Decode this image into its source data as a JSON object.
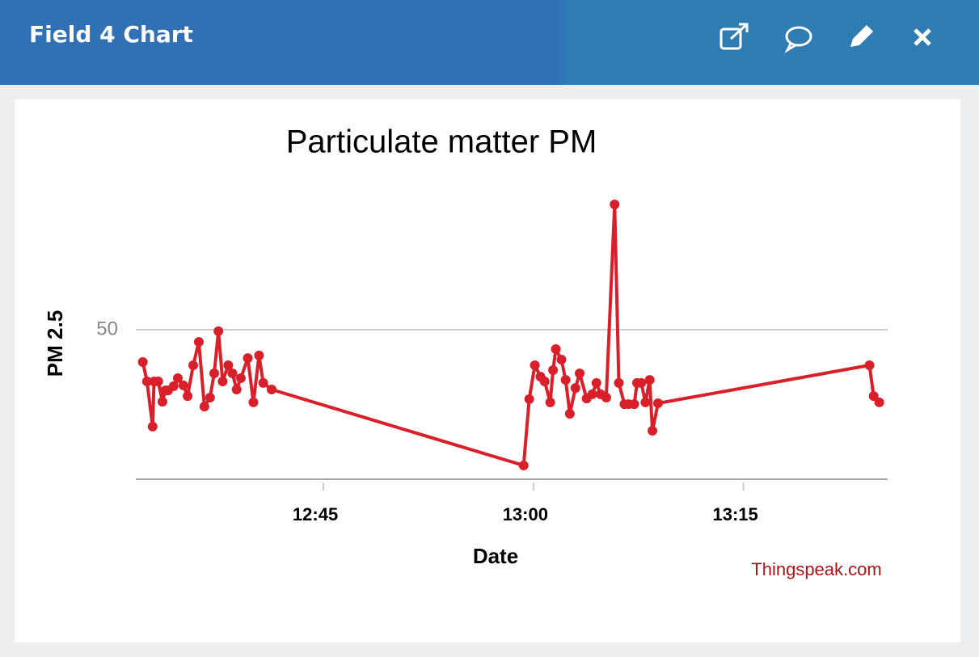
{
  "header": {
    "title": "Field 4 Chart"
  },
  "chart_data": {
    "type": "line",
    "title": "Particulate matter PM",
    "x_label": "Date",
    "y_label": "PM 2.5",
    "annotation": "Thingspeak.com",
    "series": [
      {
        "name": "PM 2.5",
        "color": "#d9202a",
        "x": [
          752.1,
          752.4,
          752.8,
          752.9,
          753.2,
          753.5,
          753.7,
          753.9,
          754.3,
          754.6,
          755.0,
          755.3,
          755.7,
          756.1,
          756.5,
          756.9,
          757.2,
          757.5,
          757.8,
          758.2,
          758.5,
          758.8,
          759.1,
          759.6,
          760.0,
          760.4,
          760.7,
          761.3,
          779.3,
          779.7,
          780.1,
          780.5,
          780.8,
          781.2,
          781.4,
          781.6,
          782.0,
          782.3,
          782.6,
          783.0,
          783.3,
          783.8,
          784.2,
          784.5,
          784.8,
          785.2,
          785.8,
          786.1,
          786.5,
          786.8,
          787.2,
          787.4,
          787.7,
          788.0,
          788.3,
          788.5,
          788.9,
          804.0,
          804.3,
          804.7
        ],
        "values": [
          39.2,
          32.7,
          17.6,
          32.7,
          32.7,
          25.9,
          29.7,
          29.7,
          31.1,
          33.8,
          31.4,
          27.8,
          38.1,
          45.9,
          24.3,
          27.3,
          35.4,
          49.5,
          32.7,
          38.1,
          35.4,
          30.0,
          33.8,
          40.5,
          25.7,
          41.4,
          32.2,
          30.0,
          4.6,
          26.8,
          38.1,
          34.3,
          32.7,
          25.7,
          36.5,
          43.5,
          40.0,
          33.2,
          21.9,
          30.5,
          35.4,
          27.0,
          28.4,
          32.2,
          28.4,
          27.3,
          91.9,
          32.2,
          25.1,
          25.1,
          25.1,
          32.2,
          32.2,
          25.7,
          33.2,
          16.2,
          25.4,
          38.1,
          27.8,
          25.7
        ]
      }
    ],
    "xlim": [
      751.6,
      805.3
    ],
    "xticks": [
      {
        "value": 765,
        "label": "12:45"
      },
      {
        "value": 780,
        "label": "13:00"
      },
      {
        "value": 795,
        "label": "13:15"
      }
    ],
    "ylim": [
      0,
      100
    ],
    "yticks": [
      50
    ],
    "grid": true
  }
}
